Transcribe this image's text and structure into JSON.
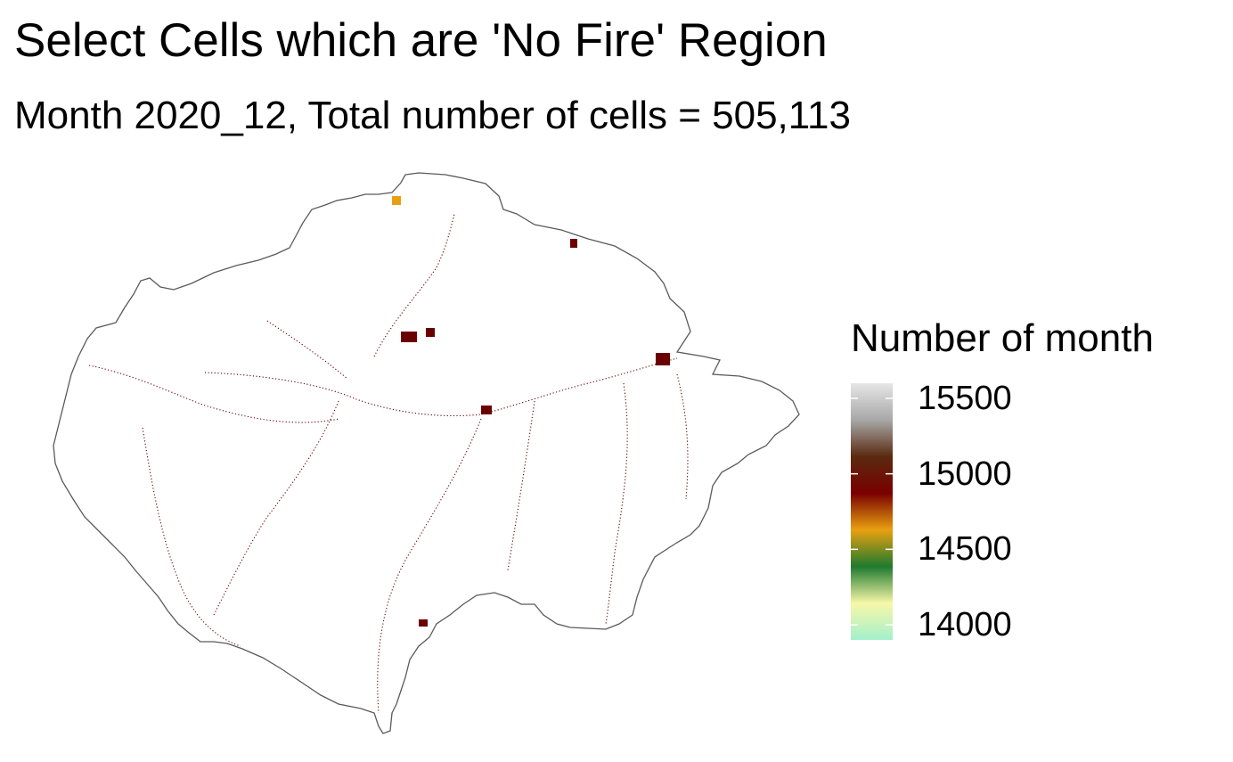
{
  "title": "Select Cells which are 'No Fire' Region",
  "subtitle": "Month 2020_12, Total number of cells = 505,113",
  "legend": {
    "title": "Number of month",
    "ticks": [
      {
        "label": "15500",
        "value": 15500
      },
      {
        "label": "15000",
        "value": 15000
      },
      {
        "label": "14500",
        "value": 14500
      },
      {
        "label": "14000",
        "value": 14000
      }
    ],
    "range": [
      13900,
      15600
    ],
    "colors": [
      "#a3f0cc",
      "#f7f7a8",
      "#1f7a2f",
      "#e8a010",
      "#7a0000",
      "#5a2a10",
      "#a8a8a8",
      "#e6e6e6"
    ]
  },
  "map": {
    "boundary_color": "#5a5a5a",
    "cell_color": "#6b0000",
    "highlight_color": "#e8a010"
  }
}
